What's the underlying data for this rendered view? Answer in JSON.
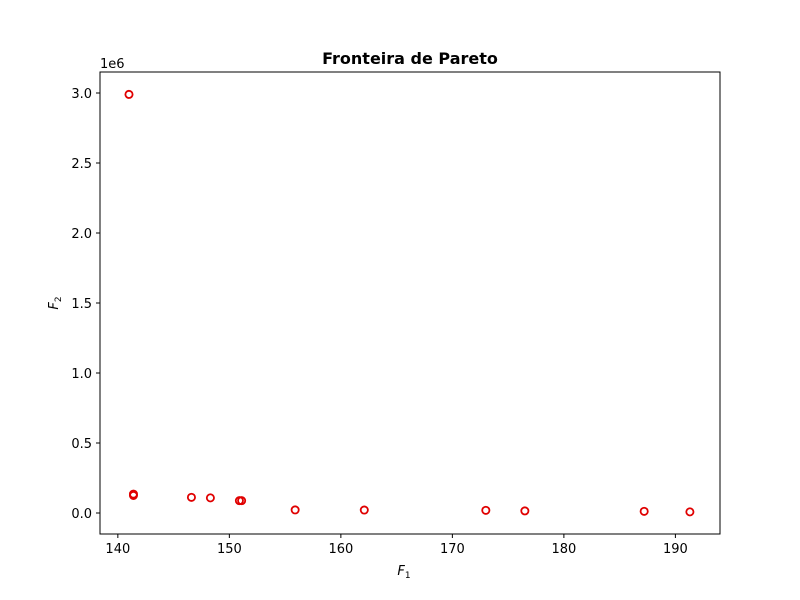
{
  "chart_data": {
    "type": "scatter",
    "title": "Fronteira de Pareto",
    "xlabel_base": "F",
    "xlabel_sub": "1",
    "ylabel_base": "F",
    "ylabel_sub": "2",
    "y_offset_label": "1e6",
    "xlim": [
      138.4,
      194.0
    ],
    "ylim": [
      -0.15,
      3.15
    ],
    "x_ticks": [
      140,
      150,
      160,
      170,
      180,
      190
    ],
    "x_tick_labels": [
      "140",
      "150",
      "160",
      "170",
      "180",
      "190"
    ],
    "y_ticks": [
      0.0,
      0.5,
      1.0,
      1.5,
      2.0,
      2.5,
      3.0
    ],
    "y_tick_labels": [
      "0.0",
      "0.5",
      "1.0",
      "1.5",
      "2.0",
      "2.5",
      "3.0"
    ],
    "marker_color": "#e00000",
    "marker": "open-circle",
    "points": [
      {
        "x": 141.0,
        "y": 2.99
      },
      {
        "x": 141.4,
        "y": 0.135
      },
      {
        "x": 141.4,
        "y": 0.125
      },
      {
        "x": 146.6,
        "y": 0.112
      },
      {
        "x": 148.3,
        "y": 0.108
      },
      {
        "x": 150.9,
        "y": 0.088
      },
      {
        "x": 151.1,
        "y": 0.088
      },
      {
        "x": 155.9,
        "y": 0.022
      },
      {
        "x": 162.1,
        "y": 0.021
      },
      {
        "x": 173.0,
        "y": 0.019
      },
      {
        "x": 176.5,
        "y": 0.015
      },
      {
        "x": 187.2,
        "y": 0.012
      },
      {
        "x": 191.3,
        "y": 0.008
      }
    ]
  }
}
